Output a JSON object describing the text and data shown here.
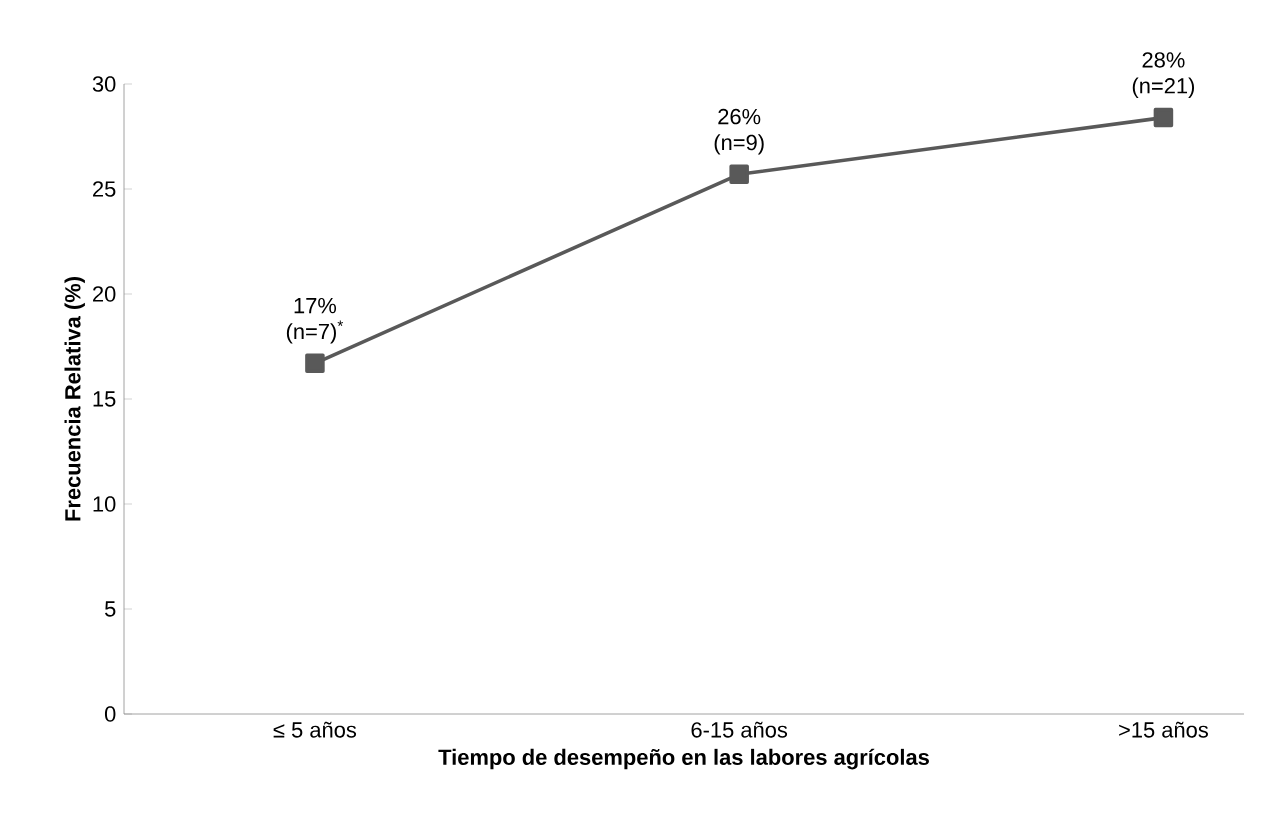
{
  "chart_data": {
    "type": "line",
    "xlabel": "Tiempo de desempeño en las labores agrícolas",
    "ylabel": "Frecuencia Relativa (%)",
    "categories": [
      "≤ 5 años",
      "6-15 años",
      ">15 años"
    ],
    "values": [
      16.7,
      25.7,
      28.4
    ],
    "value_labels": [
      "17% (n=7)$^{*}$",
      "26% (n=9)",
      "28% (n=21)"
    ],
    "color": "#595959",
    "marker": "square",
    "line_style": "solid",
    "ylim": [
      0,
      30
    ],
    "yticks": [
      0,
      5,
      10,
      15,
      20,
      25,
      30
    ],
    "grid": false
  }
}
